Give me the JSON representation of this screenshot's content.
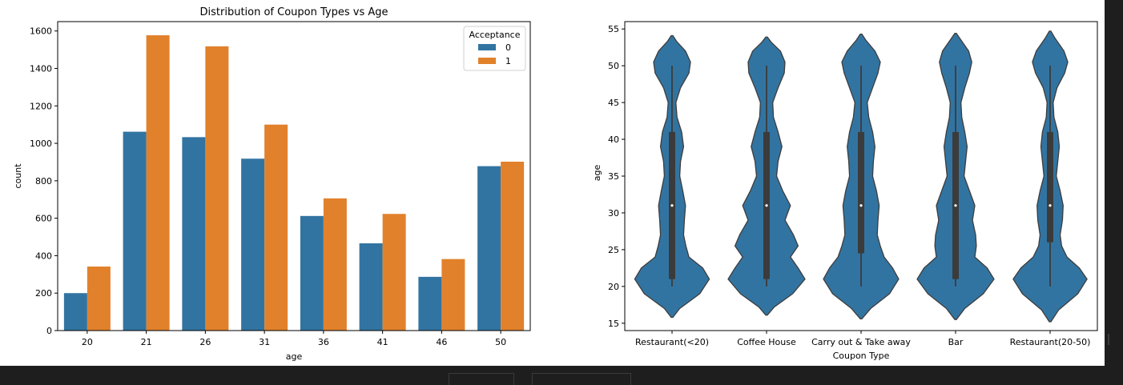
{
  "colors": {
    "c0": "#3274a1",
    "c1": "#e1812c",
    "axis": "#000000",
    "violin_edge": "#3d3d3d",
    "box": "#3b3b3b"
  },
  "chart_data": [
    {
      "type": "bar",
      "title": "Distribution of Coupon Types vs Age",
      "xlabel": "age",
      "ylabel": "count",
      "categories": [
        "20",
        "21",
        "26",
        "31",
        "36",
        "41",
        "46",
        "50"
      ],
      "series": [
        {
          "name": "0",
          "values": [
            200,
            1062,
            1033,
            918,
            612,
            466,
            287,
            878
          ]
        },
        {
          "name": "1",
          "values": [
            342,
            1577,
            1518,
            1100,
            706,
            623,
            382,
            902
          ]
        }
      ],
      "legend": {
        "title": "Acceptance",
        "position": "top-right"
      },
      "ylim": [
        0,
        1650
      ],
      "yticks": [
        0,
        200,
        400,
        600,
        800,
        1000,
        1200,
        1400,
        1600
      ],
      "grid": false
    },
    {
      "type": "violin",
      "title": "",
      "xlabel": "Coupon Type",
      "ylabel": "age",
      "categories": [
        "Restaurant(<20)",
        "Coffee House",
        "Carry out & Take away",
        "Bar",
        "Restaurant(20-50)"
      ],
      "box": [
        {
          "min": 20,
          "q1": 21,
          "median": 31,
          "q3": 41,
          "max": 50
        },
        {
          "min": 20,
          "q1": 21,
          "median": 31,
          "q3": 41,
          "max": 50
        },
        {
          "min": 20,
          "q1": 24.5,
          "median": 31,
          "q3": 41,
          "max": 50
        },
        {
          "min": 20,
          "q1": 21,
          "median": 31,
          "q3": 41,
          "max": 50
        },
        {
          "min": 20,
          "q1": 26,
          "median": 31,
          "q3": 41,
          "max": 50
        }
      ],
      "density": [
        [
          [
            15.8,
            0.02
          ],
          [
            17,
            0.2
          ],
          [
            19,
            0.72
          ],
          [
            21,
            0.97
          ],
          [
            22.5,
            0.8
          ],
          [
            24,
            0.44
          ],
          [
            25.5,
            0.36
          ],
          [
            27,
            0.3
          ],
          [
            29,
            0.32
          ],
          [
            31,
            0.35
          ],
          [
            33,
            0.28
          ],
          [
            35,
            0.2
          ],
          [
            37,
            0.22
          ],
          [
            39,
            0.3
          ],
          [
            41,
            0.25
          ],
          [
            43,
            0.13
          ],
          [
            45,
            0.1
          ],
          [
            47,
            0.22
          ],
          [
            49,
            0.44
          ],
          [
            50.5,
            0.48
          ],
          [
            52,
            0.35
          ],
          [
            53.3,
            0.12
          ],
          [
            54.1,
            0.02
          ]
        ],
        [
          [
            16.1,
            0.02
          ],
          [
            17.2,
            0.2
          ],
          [
            19,
            0.68
          ],
          [
            21,
            1.0
          ],
          [
            22.5,
            0.82
          ],
          [
            24,
            0.62
          ],
          [
            25.5,
            0.82
          ],
          [
            27,
            0.7
          ],
          [
            29,
            0.48
          ],
          [
            31,
            0.62
          ],
          [
            33,
            0.42
          ],
          [
            35,
            0.26
          ],
          [
            37,
            0.3
          ],
          [
            39,
            0.4
          ],
          [
            41,
            0.3
          ],
          [
            43,
            0.18
          ],
          [
            45,
            0.16
          ],
          [
            47,
            0.3
          ],
          [
            49,
            0.46
          ],
          [
            50.5,
            0.48
          ],
          [
            52,
            0.36
          ],
          [
            53.2,
            0.12
          ],
          [
            53.9,
            0.02
          ]
        ],
        [
          [
            15.6,
            0.02
          ],
          [
            17,
            0.25
          ],
          [
            19,
            0.74
          ],
          [
            21,
            0.98
          ],
          [
            22.5,
            0.82
          ],
          [
            24,
            0.6
          ],
          [
            25.5,
            0.5
          ],
          [
            27,
            0.42
          ],
          [
            29,
            0.44
          ],
          [
            31,
            0.47
          ],
          [
            33,
            0.4
          ],
          [
            35,
            0.3
          ],
          [
            37,
            0.32
          ],
          [
            39,
            0.36
          ],
          [
            41,
            0.3
          ],
          [
            43,
            0.2
          ],
          [
            45,
            0.16
          ],
          [
            47,
            0.3
          ],
          [
            49,
            0.44
          ],
          [
            50.5,
            0.5
          ],
          [
            52,
            0.36
          ],
          [
            53.5,
            0.12
          ],
          [
            54.3,
            0.02
          ]
        ],
        [
          [
            15.5,
            0.02
          ],
          [
            17,
            0.24
          ],
          [
            19,
            0.72
          ],
          [
            21,
            1.0
          ],
          [
            22.5,
            0.82
          ],
          [
            24,
            0.5
          ],
          [
            25.5,
            0.54
          ],
          [
            27,
            0.52
          ],
          [
            29,
            0.44
          ],
          [
            31,
            0.5
          ],
          [
            33,
            0.36
          ],
          [
            35,
            0.22
          ],
          [
            37,
            0.26
          ],
          [
            39,
            0.3
          ],
          [
            41,
            0.24
          ],
          [
            43,
            0.16
          ],
          [
            45,
            0.14
          ],
          [
            47,
            0.24
          ],
          [
            49,
            0.36
          ],
          [
            50.5,
            0.42
          ],
          [
            52,
            0.34
          ],
          [
            53.5,
            0.14
          ],
          [
            54.4,
            0.02
          ]
        ],
        [
          [
            15.2,
            0.02
          ],
          [
            16.8,
            0.22
          ],
          [
            19,
            0.72
          ],
          [
            21,
            0.96
          ],
          [
            22.5,
            0.76
          ],
          [
            24,
            0.44
          ],
          [
            25.5,
            0.3
          ],
          [
            27,
            0.26
          ],
          [
            29,
            0.32
          ],
          [
            31,
            0.34
          ],
          [
            33,
            0.26
          ],
          [
            35,
            0.16
          ],
          [
            37,
            0.2
          ],
          [
            39,
            0.24
          ],
          [
            41,
            0.2
          ],
          [
            43,
            0.1
          ],
          [
            45,
            0.08
          ],
          [
            47,
            0.18
          ],
          [
            49,
            0.38
          ],
          [
            50.5,
            0.46
          ],
          [
            52,
            0.36
          ],
          [
            53.8,
            0.12
          ],
          [
            54.7,
            0.02
          ]
        ]
      ],
      "ylim": [
        14,
        56
      ],
      "yticks": [
        15,
        20,
        25,
        30,
        35,
        40,
        45,
        50,
        55
      ],
      "grid": false
    }
  ]
}
